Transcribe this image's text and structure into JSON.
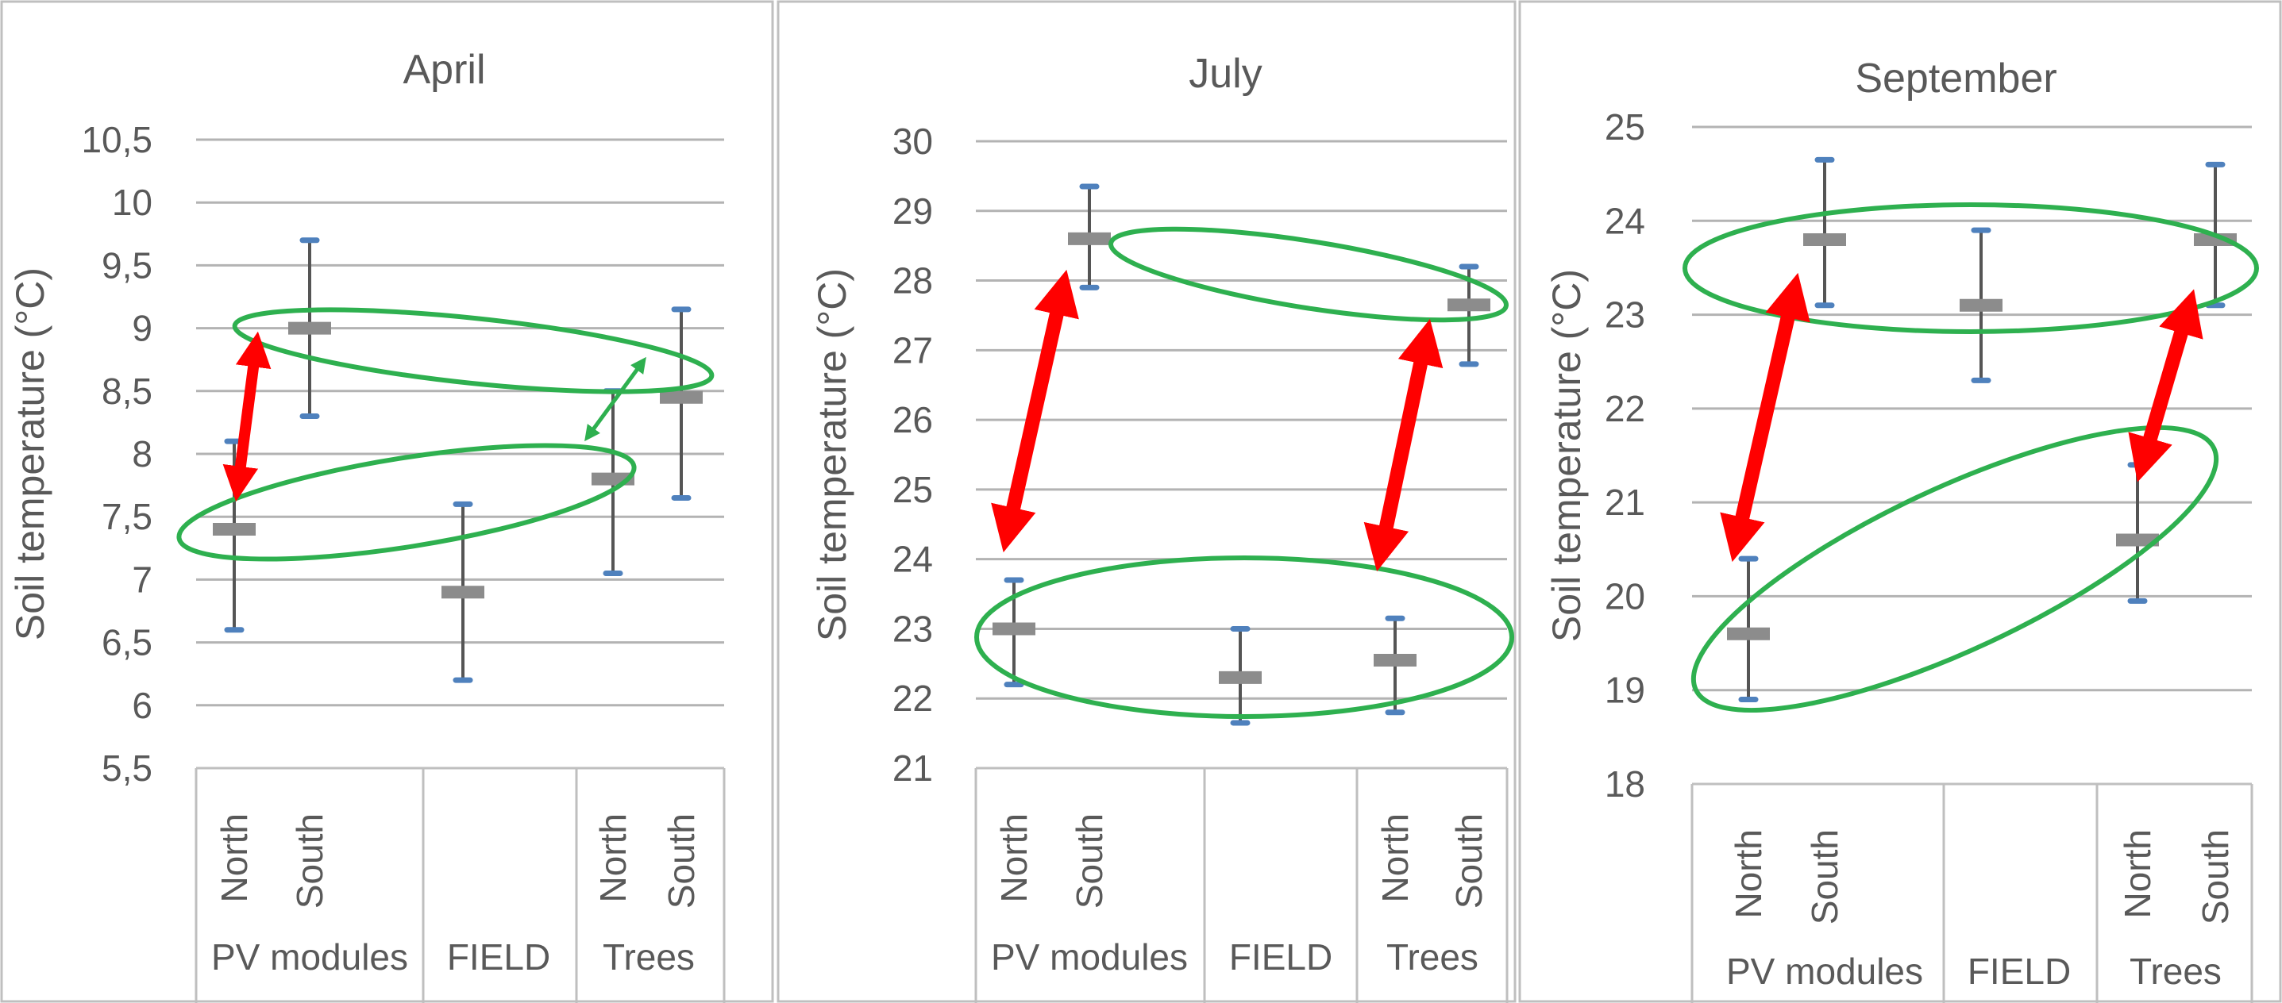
{
  "chart_data": [
    {
      "type": "scatter",
      "title": "April",
      "ylabel": "Soil temperature (°C)",
      "ylim": [
        5.5,
        10.5
      ],
      "yticks": [
        "10,5",
        "10",
        "9,5",
        "9",
        "8,5",
        "8",
        "7,5",
        "7",
        "6,5",
        "6",
        "5,5"
      ],
      "groups": [
        {
          "label": "PV modules",
          "categories": [
            "North",
            "South"
          ]
        },
        {
          "label": "FIELD",
          "categories": [
            ""
          ]
        },
        {
          "label": "Trees",
          "categories": [
            "North",
            "South"
          ]
        }
      ],
      "points": [
        {
          "group": "PV modules",
          "category": "North",
          "value": 7.4,
          "low": 6.6,
          "high": 8.1
        },
        {
          "group": "PV modules",
          "category": "South",
          "value": 9.0,
          "low": 8.3,
          "high": 9.7
        },
        {
          "group": "FIELD",
          "category": "",
          "value": 6.9,
          "low": 6.2,
          "high": 7.6
        },
        {
          "group": "Trees",
          "category": "North",
          "value": 7.8,
          "low": 7.05,
          "high": 8.5
        },
        {
          "group": "Trees",
          "category": "South",
          "value": 8.45,
          "low": 7.65,
          "high": 9.15
        }
      ],
      "grid": true
    },
    {
      "type": "scatter",
      "title": "July",
      "ylabel": "Soil temperature (°C)",
      "ylim": [
        21,
        30
      ],
      "yticks": [
        "30",
        "29",
        "28",
        "27",
        "26",
        "25",
        "24",
        "23",
        "22",
        "21"
      ],
      "groups": [
        {
          "label": "PV modules",
          "categories": [
            "North",
            "South"
          ]
        },
        {
          "label": "FIELD",
          "categories": [
            ""
          ]
        },
        {
          "label": "Trees",
          "categories": [
            "North",
            "South"
          ]
        }
      ],
      "points": [
        {
          "group": "PV modules",
          "category": "North",
          "value": 23.0,
          "low": 22.2,
          "high": 23.7
        },
        {
          "group": "PV modules",
          "category": "South",
          "value": 28.6,
          "low": 27.9,
          "high": 29.35
        },
        {
          "group": "FIELD",
          "category": "",
          "value": 22.3,
          "low": 21.65,
          "high": 23.0
        },
        {
          "group": "Trees",
          "category": "North",
          "value": 22.55,
          "low": 21.8,
          "high": 23.15
        },
        {
          "group": "Trees",
          "category": "South",
          "value": 27.65,
          "low": 26.8,
          "high": 28.2
        }
      ],
      "grid": true
    },
    {
      "type": "scatter",
      "title": "September",
      "ylabel": "Soil temperature (°C)",
      "ylim": [
        18,
        25
      ],
      "yticks": [
        "25",
        "24",
        "23",
        "22",
        "21",
        "20",
        "19",
        "18"
      ],
      "groups": [
        {
          "label": "PV modules",
          "categories": [
            "North",
            "South"
          ]
        },
        {
          "label": "FIELD",
          "categories": [
            ""
          ]
        },
        {
          "label": "Trees",
          "categories": [
            "North",
            "South"
          ]
        }
      ],
      "points": [
        {
          "group": "PV modules",
          "category": "North",
          "value": 19.6,
          "low": 18.9,
          "high": 20.4
        },
        {
          "group": "PV modules",
          "category": "South",
          "value": 23.8,
          "low": 23.1,
          "high": 24.65
        },
        {
          "group": "FIELD",
          "category": "",
          "value": 23.1,
          "low": 22.3,
          "high": 23.9
        },
        {
          "group": "Trees",
          "category": "North",
          "value": 20.6,
          "low": 19.95,
          "high": 21.4
        },
        {
          "group": "Trees",
          "category": "South",
          "value": 23.8,
          "low": 23.1,
          "high": 24.6
        }
      ],
      "grid": true
    }
  ],
  "colors": {
    "grid": "#b3b3b3",
    "error_bar": "#555555",
    "error_cap": "#4f81bd",
    "mean_marker": "#8c8c8c",
    "ellipse": "#2eb04f",
    "red_arrow": "#ff0000",
    "text": "#595959"
  }
}
